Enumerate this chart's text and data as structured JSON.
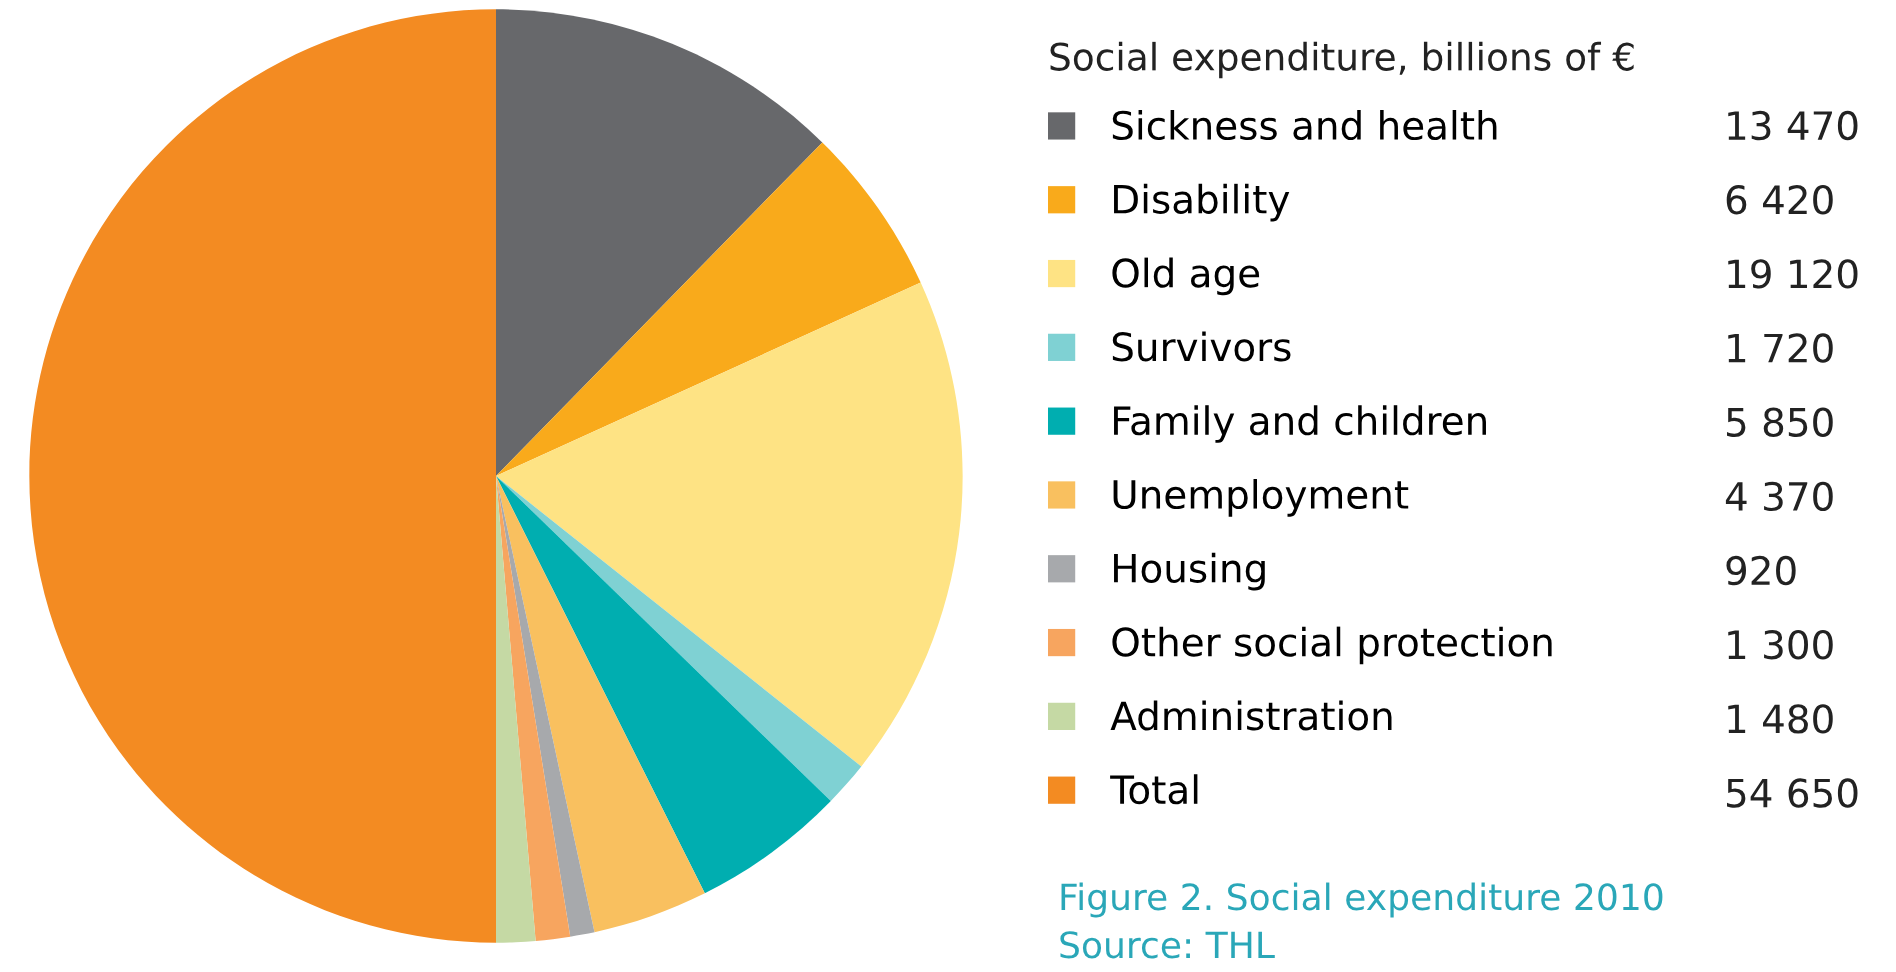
{
  "chart_data": {
    "type": "pie",
    "title": "Social expenditure, billions of €",
    "categories": [
      "Sickness and health",
      "Disability",
      "Old age",
      "Survivors",
      "Family and children",
      "Unemployment",
      "Housing",
      "Other social protection",
      "Administration",
      "Total"
    ],
    "values": [
      13470,
      6420,
      19120,
      1720,
      5850,
      4370,
      920,
      1300,
      1480,
      54650
    ],
    "value_labels": [
      "13 470",
      "6 420",
      "19 120",
      "1 720",
      "5 850",
      "4 370",
      "920",
      "1 300",
      "1 480",
      "54 650"
    ],
    "colors": [
      "#67686b",
      "#f9aa1b",
      "#fee384",
      "#7fd1d3",
      "#00aeb0",
      "#f9c05f",
      "#a7a9ac",
      "#f7a55f",
      "#c5d9a4",
      "#f38b22"
    ],
    "legend": "right",
    "annotations": [
      "Figure 2. Social expenditure 2010",
      "Source: THL"
    ]
  }
}
